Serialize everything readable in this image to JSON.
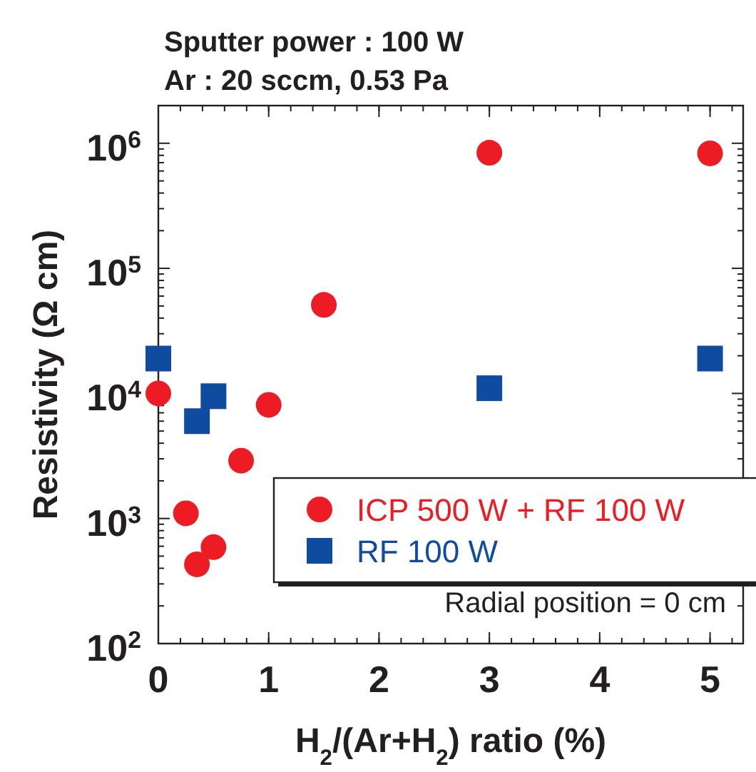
{
  "chart_data": {
    "type": "scatter",
    "title": "Sputter power : 100 W",
    "subtitle": "Ar : 20 sccm, 0.53 Pa",
    "xlabel": "H$_{2}$/(Ar+H$_{2}$) ratio (%)",
    "ylabel": "Resistivity (Ω cm)",
    "log": "y",
    "xlim": [
      0,
      5.3
    ],
    "xticks": [
      0,
      1,
      2,
      3,
      4,
      5
    ],
    "ylim": [
      100,
      2000000
    ],
    "yticks": [
      {
        "value": 100,
        "label": "10$^{2}$"
      },
      {
        "value": 1000,
        "label": "10$^{3}$"
      },
      {
        "value": 10000,
        "label": "10$^{4}$"
      },
      {
        "value": 100000,
        "label": "10$^{5}$"
      },
      {
        "value": 1000000,
        "label": "10$^{6}$"
      }
    ],
    "legend": "bottom right",
    "annotations": [
      "Radial position = 0 cm"
    ],
    "series": [
      {
        "name": "ICP 500 W + RF 100 W",
        "color": "#ed1c24",
        "marker": "circle",
        "x": [
          0,
          0.25,
          0.35,
          0.5,
          0.75,
          1,
          1.5,
          3,
          5
        ],
        "values": [
          10000,
          1100,
          430,
          590,
          2900,
          8100,
          51000,
          840000,
          830000
        ]
      },
      {
        "name": "RF 100 W",
        "color": "#0f4c9f",
        "marker": "square",
        "x": [
          0,
          0.35,
          0.5,
          3,
          5
        ],
        "values": [
          19000,
          6000,
          9500,
          11000,
          19000
        ]
      }
    ]
  }
}
